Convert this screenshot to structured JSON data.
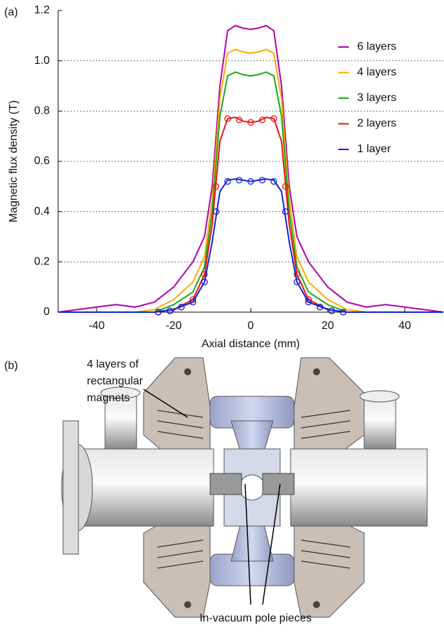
{
  "chart_data": {
    "type": "line",
    "y_label": "Magnetic flux density (T)",
    "x_label": "Axial distance (mm)",
    "x": [
      -50,
      -45,
      -40,
      -35,
      -30,
      -25,
      -20,
      -15,
      -12,
      -10,
      -8,
      -6,
      -4,
      -2,
      0,
      2,
      4,
      6,
      8,
      10,
      12,
      15,
      20,
      25,
      30,
      35,
      40,
      45,
      50
    ],
    "series": [
      {
        "name": "6 layers",
        "color": "#b000b0",
        "values": [
          0,
          0.01,
          0.02,
          0.03,
          0.02,
          0.04,
          0.1,
          0.2,
          0.3,
          0.5,
          0.9,
          1.12,
          1.14,
          1.13,
          1.125,
          1.13,
          1.14,
          1.12,
          0.9,
          0.5,
          0.3,
          0.2,
          0.1,
          0.04,
          0.02,
          0.03,
          0.02,
          0.01,
          0
        ]
      },
      {
        "name": "4 layers",
        "color": "#ffaa00",
        "values": [
          0,
          0,
          0,
          0,
          0,
          0.01,
          0.05,
          0.12,
          0.22,
          0.45,
          0.85,
          1.03,
          1.045,
          1.035,
          1.03,
          1.035,
          1.045,
          1.03,
          0.85,
          0.45,
          0.22,
          0.12,
          0.05,
          0.01,
          0,
          0,
          0,
          0,
          0
        ]
      },
      {
        "name": "3 layers",
        "color": "#1aaa1a",
        "values": [
          0,
          0,
          0,
          0,
          0,
          0,
          0.03,
          0.08,
          0.18,
          0.4,
          0.78,
          0.94,
          0.955,
          0.945,
          0.94,
          0.945,
          0.955,
          0.94,
          0.78,
          0.4,
          0.18,
          0.08,
          0.03,
          0,
          0,
          0,
          0,
          0,
          0
        ]
      },
      {
        "name": "2 layers",
        "color": "#ee1111",
        "values": [
          0,
          0,
          0,
          0,
          0,
          0,
          0.01,
          0.05,
          0.15,
          0.35,
          0.68,
          0.77,
          0.775,
          0.76,
          0.755,
          0.76,
          0.775,
          0.77,
          0.68,
          0.35,
          0.15,
          0.05,
          0.01,
          0,
          0,
          0,
          0,
          0,
          0
        ],
        "measured": {
          "x": [
            -24,
            -21,
            -18,
            -15,
            -12,
            -9,
            -6,
            -3,
            0,
            3,
            6,
            9,
            12,
            15,
            18,
            21,
            24
          ],
          "values": [
            0,
            0.005,
            0.02,
            0.05,
            0.15,
            0.5,
            0.77,
            0.765,
            0.755,
            0.765,
            0.77,
            0.5,
            0.15,
            0.05,
            0.02,
            0.005,
            0
          ]
        }
      },
      {
        "name": "1 layer",
        "color": "#1122dd",
        "values": [
          0,
          0,
          0,
          0,
          0,
          0,
          0.01,
          0.04,
          0.12,
          0.28,
          0.48,
          0.525,
          0.53,
          0.525,
          0.52,
          0.525,
          0.53,
          0.525,
          0.48,
          0.28,
          0.12,
          0.04,
          0.01,
          0,
          0,
          0,
          0,
          0,
          0
        ],
        "measured": {
          "x": [
            -24,
            -21,
            -18,
            -15,
            -12,
            -9,
            -6,
            -3,
            0,
            3,
            6,
            9,
            12,
            15,
            18,
            21,
            24
          ],
          "values": [
            0,
            0.005,
            0.02,
            0.04,
            0.12,
            0.4,
            0.52,
            0.525,
            0.52,
            0.525,
            0.52,
            0.4,
            0.12,
            0.04,
            0.02,
            0.005,
            0
          ]
        }
      }
    ],
    "xlim": [
      -50,
      50
    ],
    "xticks": [
      -40,
      -20,
      0,
      20,
      40
    ],
    "ylim": [
      0,
      1.2
    ],
    "yticks": [
      0,
      0.2,
      0.4,
      0.6,
      0.8,
      {
        "value": 1,
        "label": "1.0"
      },
      1.2
    ],
    "grid": true,
    "legend": "upper-right"
  },
  "panels": {
    "a": "(a)",
    "b": "(b)",
    "magnets_label": [
      "4 layers of",
      "rectangular",
      "magnets"
    ],
    "pole_label": "In-vacuum pole pieces"
  }
}
